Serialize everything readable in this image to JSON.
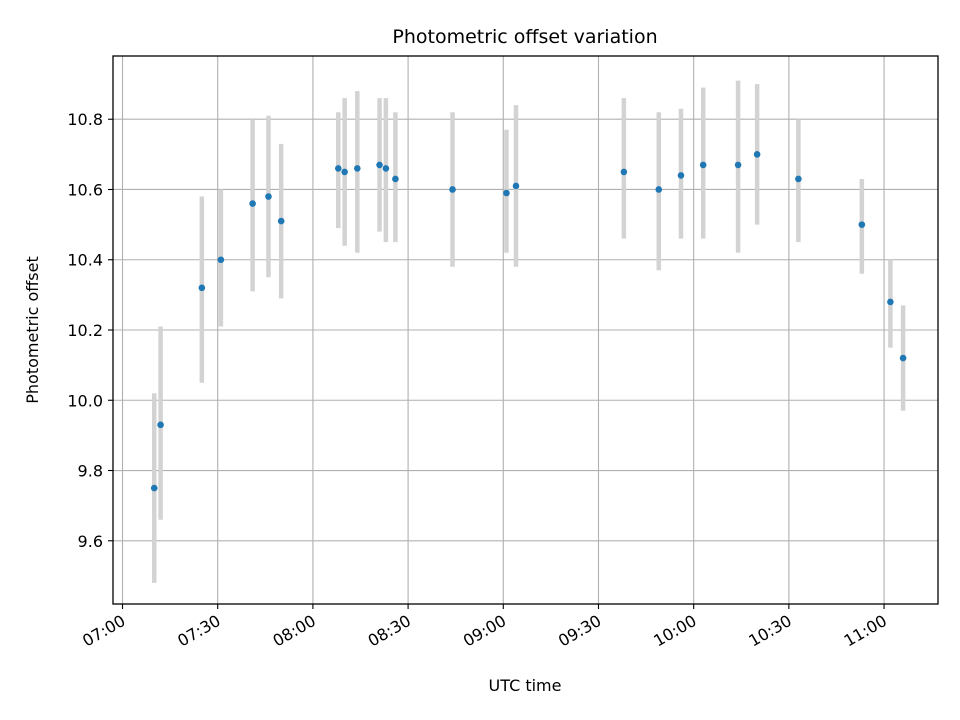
{
  "chart_data": {
    "type": "scatter",
    "title": "Photometric offset variation",
    "xlabel": "UTC time",
    "ylabel": "Photometric offset",
    "xlim": [
      "06:57",
      "11:17"
    ],
    "ylim": [
      9.42,
      10.98
    ],
    "grid": true,
    "legend": "none",
    "x_ticks": [
      "07:00",
      "07:30",
      "08:00",
      "08:30",
      "09:00",
      "09:30",
      "10:00",
      "10:30",
      "11:00"
    ],
    "y_ticks": [
      9.6,
      9.8,
      10.0,
      10.2,
      10.4,
      10.6,
      10.8
    ],
    "y_tick_labels": [
      "9.6",
      "9.8",
      "10.0",
      "10.2",
      "10.4",
      "10.6",
      "10.8"
    ],
    "colors": {
      "point": "#1f77b4",
      "error_bar": "#d3d3d3"
    },
    "series": [
      {
        "points": [
          {
            "x": "07:10",
            "y": 9.75,
            "y_low": 9.48,
            "y_high": 10.02
          },
          {
            "x": "07:12",
            "y": 9.93,
            "y_low": 9.66,
            "y_high": 10.21
          },
          {
            "x": "07:25",
            "y": 10.32,
            "y_low": 10.05,
            "y_high": 10.58
          },
          {
            "x": "07:31",
            "y": 10.4,
            "y_low": 10.21,
            "y_high": 10.6
          },
          {
            "x": "07:41",
            "y": 10.56,
            "y_low": 10.31,
            "y_high": 10.8
          },
          {
            "x": "07:46",
            "y": 10.58,
            "y_low": 10.35,
            "y_high": 10.81
          },
          {
            "x": "07:50",
            "y": 10.51,
            "y_low": 10.29,
            "y_high": 10.73
          },
          {
            "x": "08:08",
            "y": 10.66,
            "y_low": 10.49,
            "y_high": 10.82
          },
          {
            "x": "08:10",
            "y": 10.65,
            "y_low": 10.44,
            "y_high": 10.86
          },
          {
            "x": "08:14",
            "y": 10.66,
            "y_low": 10.42,
            "y_high": 10.88
          },
          {
            "x": "08:21",
            "y": 10.67,
            "y_low": 10.48,
            "y_high": 10.86
          },
          {
            "x": "08:23",
            "y": 10.66,
            "y_low": 10.45,
            "y_high": 10.86
          },
          {
            "x": "08:26",
            "y": 10.63,
            "y_low": 10.45,
            "y_high": 10.82
          },
          {
            "x": "08:44",
            "y": 10.6,
            "y_low": 10.38,
            "y_high": 10.82
          },
          {
            "x": "09:01",
            "y": 10.59,
            "y_low": 10.42,
            "y_high": 10.77
          },
          {
            "x": "09:04",
            "y": 10.61,
            "y_low": 10.38,
            "y_high": 10.84
          },
          {
            "x": "09:38",
            "y": 10.65,
            "y_low": 10.46,
            "y_high": 10.86
          },
          {
            "x": "09:49",
            "y": 10.6,
            "y_low": 10.37,
            "y_high": 10.82
          },
          {
            "x": "09:56",
            "y": 10.64,
            "y_low": 10.46,
            "y_high": 10.83
          },
          {
            "x": "10:03",
            "y": 10.67,
            "y_low": 10.46,
            "y_high": 10.89
          },
          {
            "x": "10:14",
            "y": 10.67,
            "y_low": 10.42,
            "y_high": 10.91
          },
          {
            "x": "10:20",
            "y": 10.7,
            "y_low": 10.5,
            "y_high": 10.9
          },
          {
            "x": "10:33",
            "y": 10.63,
            "y_low": 10.45,
            "y_high": 10.8
          },
          {
            "x": "10:53",
            "y": 10.5,
            "y_low": 10.36,
            "y_high": 10.63
          },
          {
            "x": "11:02",
            "y": 10.28,
            "y_low": 10.15,
            "y_high": 10.4
          },
          {
            "x": "11:06",
            "y": 10.12,
            "y_low": 9.97,
            "y_high": 10.27
          }
        ]
      }
    ]
  }
}
